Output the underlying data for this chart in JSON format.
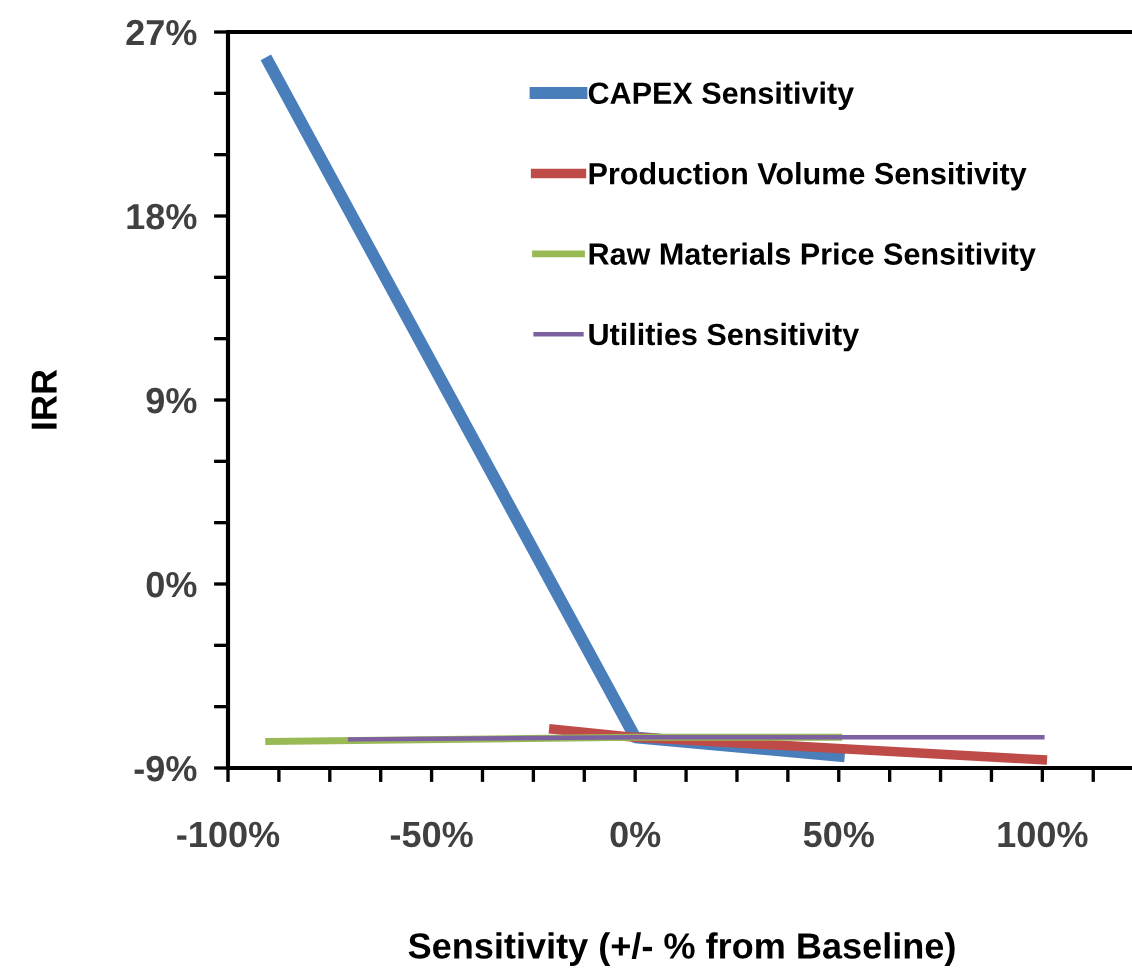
{
  "chart_data": {
    "type": "line",
    "xlabel": "Sensitivity (+/- % from Baseline)",
    "ylabel": "IRR",
    "xlim": [
      -100,
      123
    ],
    "ylim": [
      -9,
      27
    ],
    "xticks": [
      {
        "value": -100,
        "label": "-100%"
      },
      {
        "value": -87.5,
        "label": null
      },
      {
        "value": -75,
        "label": null
      },
      {
        "value": -62.5,
        "label": null
      },
      {
        "value": -50,
        "label": "-50%"
      },
      {
        "value": -37.5,
        "label": null
      },
      {
        "value": -25,
        "label": null
      },
      {
        "value": -12.5,
        "label": null
      },
      {
        "value": 0,
        "label": "0%"
      },
      {
        "value": 12.5,
        "label": null
      },
      {
        "value": 25,
        "label": null
      },
      {
        "value": 37.5,
        "label": null
      },
      {
        "value": 50,
        "label": "50%"
      },
      {
        "value": 62.5,
        "label": null
      },
      {
        "value": 75,
        "label": null
      },
      {
        "value": 87.5,
        "label": null
      },
      {
        "value": 100,
        "label": "100%"
      },
      {
        "value": 112.5,
        "label": null
      }
    ],
    "yticks": [
      {
        "value": -9,
        "label": "-9%"
      },
      {
        "value": -6,
        "label": null
      },
      {
        "value": -3,
        "label": null
      },
      {
        "value": 0,
        "label": "0%"
      },
      {
        "value": 3,
        "label": null
      },
      {
        "value": 6,
        "label": null
      },
      {
        "value": 9,
        "label": "9%"
      },
      {
        "value": 12,
        "label": null
      },
      {
        "value": 15,
        "label": null
      },
      {
        "value": 18,
        "label": "18%"
      },
      {
        "value": 21,
        "label": null
      },
      {
        "value": 24,
        "label": null
      },
      {
        "value": 27,
        "label": "27%"
      }
    ],
    "grid": false,
    "legend": "top right",
    "marker": "none",
    "line_style": "solid",
    "series": [
      {
        "name": "CAPEX Sensitivity",
        "color": "#4a7ebb",
        "x": [
          -90,
          0,
          50
        ],
        "values": [
          25.5,
          -7.5,
          -8.4
        ]
      },
      {
        "name": "Production Volume Sensitivity",
        "color": "#be4b48",
        "x": [
          -20,
          0,
          100
        ],
        "values": [
          -7.1,
          -7.5,
          -8.6
        ]
      },
      {
        "name": "Raw Materials Price Sensitivity",
        "color": "#98b954",
        "x": [
          -90,
          0,
          50
        ],
        "values": [
          -7.7,
          -7.5,
          -7.5
        ]
      },
      {
        "name": "Utilities Sensitivity",
        "color": "#7d60a0",
        "x": [
          -70,
          0,
          100
        ],
        "values": [
          -7.6,
          -7.5,
          -7.5
        ]
      }
    ]
  }
}
